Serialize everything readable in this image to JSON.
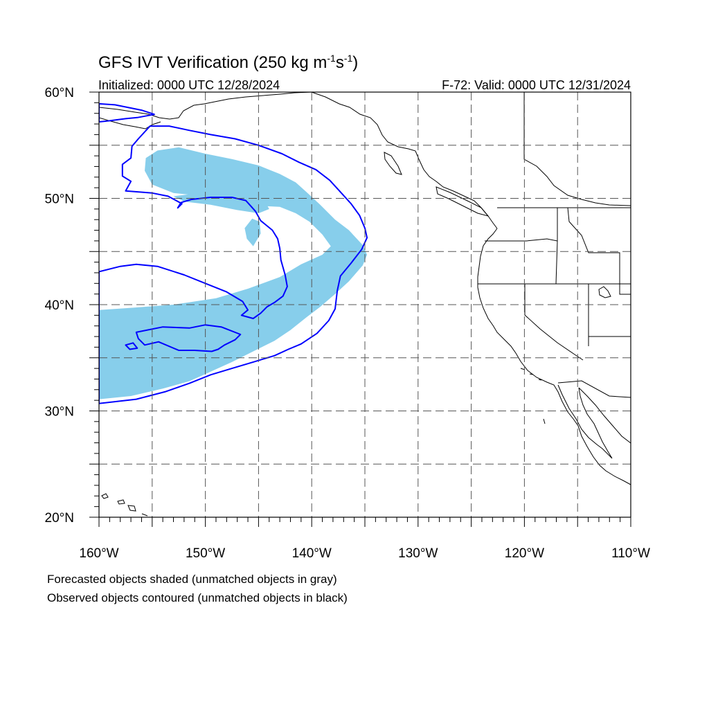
{
  "title": {
    "main": "GFS IVT Verification (250 kg m",
    "sup1": "-1",
    "mid": "s",
    "sup2": "-1",
    "end": ")"
  },
  "subtitle_left": "Initialized: 0000 UTC 12/28/2024",
  "subtitle_right": "F-72: Valid: 0000 UTC 12/31/2024",
  "footnotes": [
    "Forecasted objects shaded (unmatched objects in gray)",
    "Observed objects contoured (unmatched objects in black)"
  ],
  "colors": {
    "forecast_fill": "#87ceeb",
    "observed_contour": "#0000ff",
    "coastline": "#000000",
    "grid": "#555555"
  },
  "chart_data": {
    "type": "map",
    "projection": "cylindrical-equidistant",
    "lon_range": [
      -160,
      -110
    ],
    "lat_range": [
      20,
      60
    ],
    "lat_ticks": [
      {
        "value": 20,
        "label": "20°N"
      },
      {
        "value": 30,
        "label": "30°N"
      },
      {
        "value": 40,
        "label": "40°N"
      },
      {
        "value": 50,
        "label": "50°N"
      },
      {
        "value": 60,
        "label": "60°N"
      }
    ],
    "lon_ticks": [
      {
        "value": -160,
        "label": "160°W"
      },
      {
        "value": -150,
        "label": "150°W"
      },
      {
        "value": -140,
        "label": "140°W"
      },
      {
        "value": -130,
        "label": "130°W"
      },
      {
        "value": -120,
        "label": "120°W"
      },
      {
        "value": -110,
        "label": "110°W"
      }
    ],
    "grid": {
      "lon_step": 5,
      "lat_step": 5,
      "dashed": true
    },
    "forecast_object": {
      "color": "#87ceeb",
      "polygon": [
        [
          -160,
          39.5
        ],
        [
          -157,
          39.7
        ],
        [
          -153,
          40
        ],
        [
          -149,
          40.6
        ],
        [
          -146,
          41.5
        ],
        [
          -143,
          42.6
        ],
        [
          -141,
          43.8
        ],
        [
          -139,
          44.7
        ],
        [
          -138.2,
          45.5
        ],
        [
          -139,
          46.6
        ],
        [
          -140.2,
          47.8
        ],
        [
          -141.5,
          48.6
        ],
        [
          -143,
          49.2
        ],
        [
          -145,
          49.3
        ],
        [
          -147,
          49.7
        ],
        [
          -149,
          50.1
        ],
        [
          -151,
          50.3
        ],
        [
          -153,
          50.5
        ],
        [
          -155,
          51.3
        ],
        [
          -155.7,
          52.6
        ],
        [
          -155.6,
          53.8
        ],
        [
          -154.5,
          54.5
        ],
        [
          -152.5,
          54.8
        ],
        [
          -150,
          54.2
        ],
        [
          -147.5,
          53.7
        ],
        [
          -145,
          53.1
        ],
        [
          -143,
          52.3
        ],
        [
          -141.5,
          51.5
        ],
        [
          -140.5,
          50.6
        ],
        [
          -139.2,
          49.4
        ],
        [
          -137.8,
          48
        ],
        [
          -136.5,
          47
        ],
        [
          -135.2,
          45.6
        ],
        [
          -134.8,
          44.7
        ],
        [
          -135.2,
          43.7
        ],
        [
          -136.5,
          42.2
        ],
        [
          -137.8,
          41
        ],
        [
          -139.2,
          39.8
        ],
        [
          -140.5,
          38.8
        ],
        [
          -142,
          37.6
        ],
        [
          -143.5,
          36.6
        ],
        [
          -145.5,
          35.6
        ],
        [
          -147.5,
          34.6
        ],
        [
          -149.5,
          33.7
        ],
        [
          -151.5,
          32.8
        ],
        [
          -154,
          32.1
        ],
        [
          -157,
          31.4
        ],
        [
          -160,
          31.1
        ]
      ],
      "sub_lobes": [
        [
          [
            -153,
            50.2
          ],
          [
            -150.5,
            50.5
          ],
          [
            -148,
            50.6
          ],
          [
            -146,
            50.4
          ],
          [
            -144.5,
            49.9
          ],
          [
            -144,
            49
          ],
          [
            -145,
            48.6
          ],
          [
            -147,
            48.9
          ],
          [
            -149.5,
            49.4
          ],
          [
            -152,
            49.7
          ]
        ],
        [
          [
            -145.5,
            45.5
          ],
          [
            -144.8,
            46.7
          ],
          [
            -144.9,
            47.8
          ],
          [
            -145.6,
            48.1
          ],
          [
            -146.3,
            47.2
          ],
          [
            -146.1,
            46.2
          ]
        ]
      ]
    },
    "observed_objects": [
      {
        "name": "large",
        "color": "#0000ff",
        "polygon": [
          [
            -160,
            43.1
          ],
          [
            -158,
            43.6
          ],
          [
            -156.5,
            43.8
          ],
          [
            -154.5,
            43.6
          ],
          [
            -152,
            42.8
          ],
          [
            -150,
            42
          ],
          [
            -148,
            41.2
          ],
          [
            -146.5,
            40.3
          ],
          [
            -146,
            39.5
          ],
          [
            -146.6,
            39
          ],
          [
            -145.5,
            38.7
          ],
          [
            -144.8,
            39.2
          ],
          [
            -144.2,
            39.8
          ],
          [
            -143.5,
            40.2
          ],
          [
            -142.7,
            40.8
          ],
          [
            -142.3,
            41.7
          ],
          [
            -142.5,
            42.8
          ],
          [
            -142.9,
            44.2
          ],
          [
            -143,
            45.3
          ],
          [
            -143.2,
            46.2
          ],
          [
            -143.7,
            47
          ],
          [
            -144.8,
            47.9
          ],
          [
            -145.3,
            48.8
          ],
          [
            -146.2,
            49.8
          ],
          [
            -147.5,
            50.1
          ],
          [
            -149.5,
            50.1
          ],
          [
            -151.3,
            49.9
          ],
          [
            -152.3,
            49.6
          ],
          [
            -152.6,
            49.1
          ],
          [
            -152.2,
            49.5
          ],
          [
            -153.5,
            50.2
          ],
          [
            -155,
            50.5
          ],
          [
            -157.5,
            50.7
          ],
          [
            -157,
            51.6
          ],
          [
            -157.8,
            52.1
          ],
          [
            -157.8,
            53.2
          ],
          [
            -157,
            53.8
          ],
          [
            -156.9,
            54.9
          ],
          [
            -156.3,
            55.6
          ],
          [
            -155.2,
            56.8
          ],
          [
            -153.4,
            56.8
          ],
          [
            -151.5,
            56.4
          ],
          [
            -149.5,
            56.0
          ],
          [
            -147.2,
            55.6
          ],
          [
            -145,
            55.0
          ],
          [
            -142.8,
            54.2
          ],
          [
            -141.2,
            53.4
          ],
          [
            -139.6,
            52.7
          ],
          [
            -138.3,
            51.7
          ],
          [
            -137.3,
            50.6
          ],
          [
            -136.3,
            49.5
          ],
          [
            -135.5,
            48.4
          ],
          [
            -135.0,
            47.2
          ],
          [
            -134.8,
            46.3
          ],
          [
            -135.3,
            45.2
          ],
          [
            -136.3,
            43.9
          ],
          [
            -137.3,
            42.7
          ],
          [
            -137.6,
            41.3
          ],
          [
            -137.8,
            39.6
          ],
          [
            -138.4,
            38.5
          ],
          [
            -139.5,
            37.3
          ],
          [
            -141,
            36.3
          ],
          [
            -142.2,
            35.8
          ],
          [
            -143.5,
            35.2
          ],
          [
            -145.5,
            34.6
          ],
          [
            -147.5,
            34.0
          ],
          [
            -149.5,
            33.4
          ],
          [
            -151.5,
            32.6
          ],
          [
            -153.8,
            31.8
          ],
          [
            -156.5,
            31.1
          ],
          [
            -160,
            30.7
          ]
        ]
      },
      {
        "name": "small-north",
        "color": "#0000ff",
        "polygon": [
          [
            -160,
            58.9
          ],
          [
            -158.5,
            58.8
          ],
          [
            -156,
            58.3
          ],
          [
            -154.8,
            57.9
          ],
          [
            -156.4,
            57.6
          ],
          [
            -157.5,
            57.5
          ],
          [
            -159,
            57.3
          ],
          [
            -160,
            57.2
          ]
        ]
      },
      {
        "name": "island",
        "color": "#0000ff",
        "polygon": [
          [
            -156.5,
            37.4
          ],
          [
            -154,
            37.9
          ],
          [
            -151.5,
            37.8
          ],
          [
            -150,
            38.1
          ],
          [
            -148.5,
            37.9
          ],
          [
            -146.7,
            37.2
          ],
          [
            -147.2,
            36.7
          ],
          [
            -148.2,
            36.2
          ],
          [
            -148.8,
            35.8
          ],
          [
            -149.4,
            35.6
          ],
          [
            -151,
            35.7
          ],
          [
            -152.5,
            35.7
          ],
          [
            -154.4,
            36.5
          ],
          [
            -155.7,
            36.2
          ],
          [
            -156.3,
            36.8
          ]
        ]
      },
      {
        "name": "island-small",
        "color": "#0000ff",
        "polygon": [
          [
            -157.5,
            36.2
          ],
          [
            -156.8,
            36.4
          ],
          [
            -156.4,
            35.9
          ],
          [
            -157.1,
            35.8
          ]
        ]
      }
    ]
  }
}
